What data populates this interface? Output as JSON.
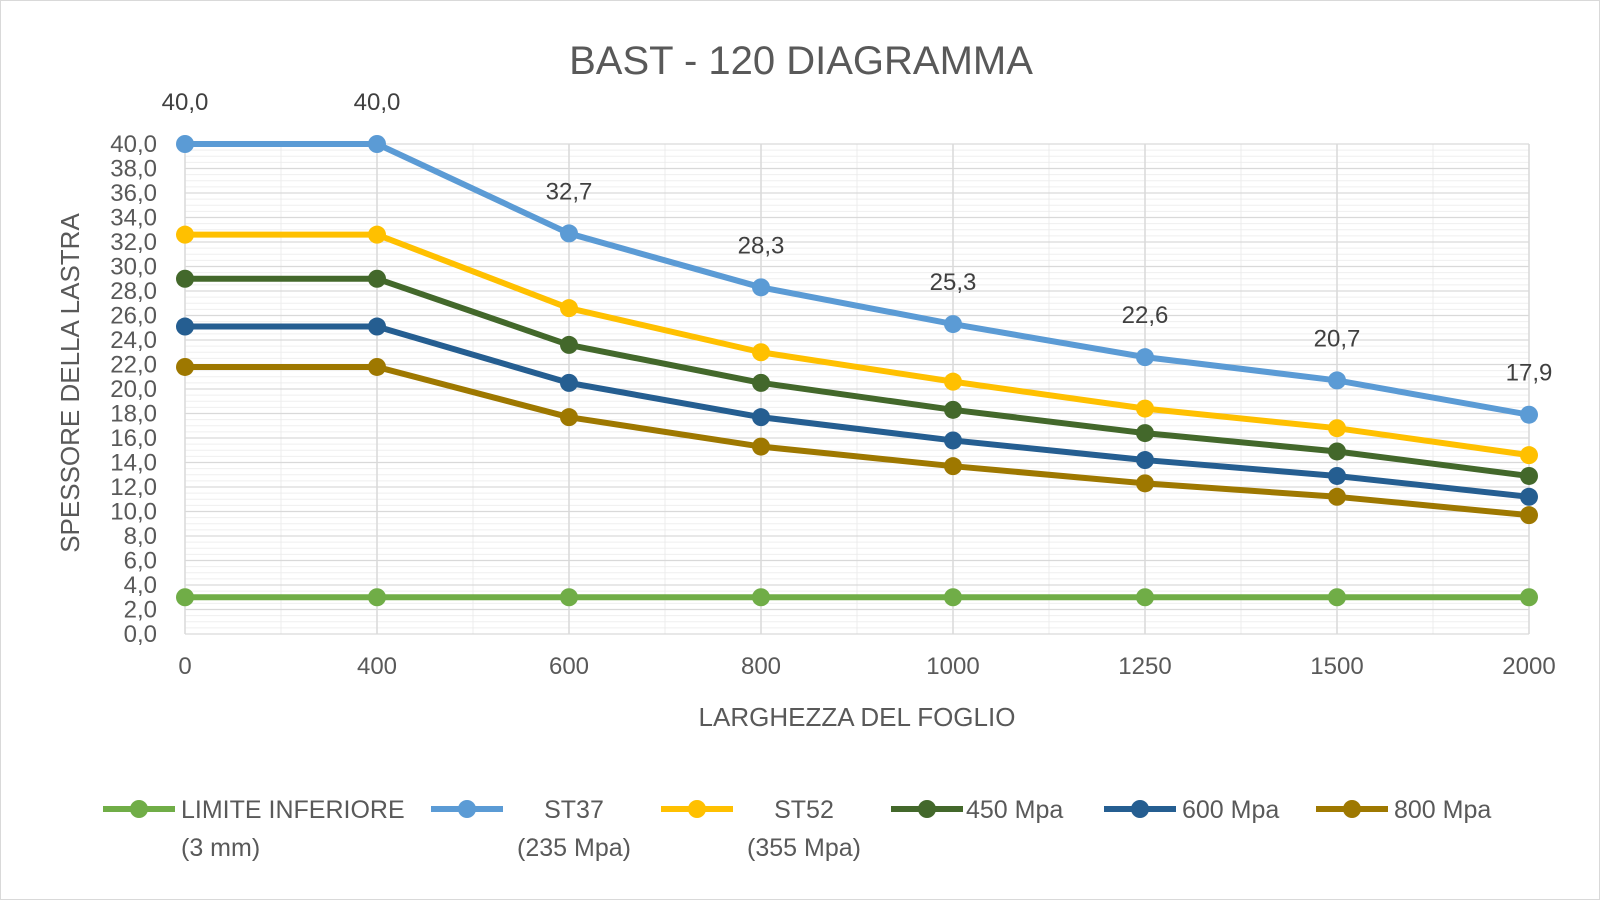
{
  "chart_data": {
    "type": "line",
    "title": "BAST - 120 DIAGRAMMA",
    "xlabel": "LARGHEZZA DEL FOGLIO",
    "ylabel": "SPESSORE DELLA LASTRA",
    "categories": [
      "0",
      "400",
      "600",
      "800",
      "1000",
      "1250",
      "1500",
      "2000"
    ],
    "ylim": [
      0,
      40
    ],
    "ytick_step": 2,
    "y_tick_labels": [
      "0,0",
      "2,0",
      "4,0",
      "6,0",
      "8,0",
      "10,0",
      "12,0",
      "14,0",
      "16,0",
      "18,0",
      "20,0",
      "22,0",
      "24,0",
      "26,0",
      "28,0",
      "30,0",
      "32,0",
      "34,0",
      "36,0",
      "38,0",
      "40,0"
    ],
    "grid": true,
    "legend_position": "bottom",
    "series": [
      {
        "name": "LIMITE INFERIORE (3 mm)",
        "legend_lines": [
          "LIMITE INFERIORE",
          "(3 mm)"
        ],
        "color": "#70ad47",
        "values": [
          3.0,
          3.0,
          3.0,
          3.0,
          3.0,
          3.0,
          3.0,
          3.0
        ],
        "data_labels": []
      },
      {
        "name": "ST37 (235 Mpa)",
        "legend_lines": [
          "ST37",
          "(235 Mpa)"
        ],
        "color": "#5b9bd5",
        "values": [
          40.0,
          40.0,
          32.7,
          28.3,
          25.3,
          22.6,
          20.7,
          17.9
        ],
        "data_labels": [
          "40,0",
          "40,0",
          "32,7",
          "28,3",
          "25,3",
          "22,6",
          "20,7",
          "17,9"
        ]
      },
      {
        "name": "ST52 (355 Mpa)",
        "legend_lines": [
          "ST52",
          "(355 Mpa)"
        ],
        "color": "#ffc000",
        "values": [
          32.6,
          32.6,
          26.6,
          23.0,
          20.6,
          18.4,
          16.8,
          14.6
        ],
        "data_labels": []
      },
      {
        "name": "450  Mpa",
        "legend_lines": [
          "450  Mpa"
        ],
        "color": "#43682b",
        "values": [
          29.0,
          29.0,
          23.6,
          20.5,
          18.3,
          16.4,
          14.9,
          12.9
        ],
        "data_labels": []
      },
      {
        "name": "600 Mpa",
        "legend_lines": [
          "600 Mpa"
        ],
        "color": "#255e91",
        "values": [
          25.1,
          25.1,
          20.5,
          17.7,
          15.8,
          14.2,
          12.9,
          11.2
        ],
        "data_labels": []
      },
      {
        "name": "800 Mpa",
        "legend_lines": [
          "800 Mpa"
        ],
        "color": "#9e7800",
        "values": [
          21.8,
          21.8,
          17.7,
          15.3,
          13.7,
          12.3,
          11.2,
          9.7
        ],
        "data_labels": []
      }
    ]
  }
}
